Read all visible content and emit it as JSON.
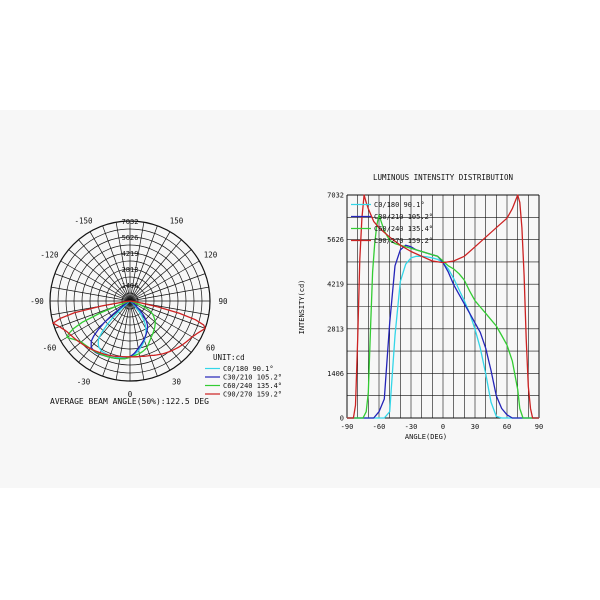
{
  "chart_data": [
    {
      "type": "polar",
      "max_value": 7032,
      "radial_ticks": [
        "7032",
        "5626",
        "4219",
        "2813",
        "1406"
      ],
      "angle_labels": [
        {
          "text": "-150",
          "deg": -150
        },
        {
          "text": "150",
          "deg": 150
        },
        {
          "text": "-120",
          "deg": -120
        },
        {
          "text": "120",
          "deg": 120
        },
        {
          "text": "-90",
          "deg": -90
        },
        {
          "text": "90",
          "deg": 90
        },
        {
          "text": "-60",
          "deg": -60
        },
        {
          "text": "60",
          "deg": 60
        },
        {
          "text": "-30",
          "deg": -30
        },
        {
          "text": "30",
          "deg": 30
        },
        {
          "text": "0",
          "deg": 0
        }
      ],
      "unit_label": "UNIT:cd",
      "footer": "AVERAGE BEAM ANGLE(50%):122.5 DEG",
      "legend": [
        {
          "label": "C0/180",
          "value": "90.1°",
          "color": "#33d6e8"
        },
        {
          "label": "C30/210",
          "value": "105.2°",
          "color": "#2424b8"
        },
        {
          "label": "C60/240",
          "value": "135.4°",
          "color": "#33cc33"
        },
        {
          "label": "C90/270",
          "value": "159.2°",
          "color": "#cc2222"
        }
      ]
    },
    {
      "type": "line",
      "title": "LUMINOUS INTENSITY DISTRIBUTION",
      "xlabel": "ANGLE(DEG)",
      "ylabel": "INTENSITY(cd)",
      "xlim": [
        -90,
        90
      ],
      "ylim": [
        0,
        7032
      ],
      "x_ticks": [
        "-90",
        "-60",
        "-30",
        "0",
        "30",
        "60",
        "90"
      ],
      "y_ticks": [
        "7032",
        "5626",
        "4219",
        "2813",
        "1406",
        "0"
      ],
      "grid": true,
      "legend_position": "top-left",
      "series": [
        {
          "name": "C0/180 90.1°",
          "color": "#33d6e8",
          "x": [
            -90,
            -60,
            -55,
            -50,
            -45,
            -40,
            -35,
            -30,
            -25,
            -20,
            -15,
            -10,
            -5,
            0,
            5,
            10,
            15,
            20,
            25,
            30,
            35,
            40,
            45,
            50,
            55,
            60,
            90
          ],
          "y": [
            0,
            0,
            0,
            200,
            2600,
            4300,
            4850,
            5050,
            5100,
            5100,
            5080,
            5050,
            5000,
            4900,
            4700,
            4400,
            4050,
            3700,
            3300,
            2800,
            2200,
            1400,
            500,
            50,
            0,
            0,
            0
          ]
        },
        {
          "name": "C30/210 105.2°",
          "color": "#2424b8",
          "x": [
            -90,
            -65,
            -60,
            -55,
            -50,
            -45,
            -40,
            -35,
            -30,
            -25,
            -20,
            -15,
            -10,
            -5,
            0,
            5,
            10,
            15,
            20,
            25,
            30,
            35,
            40,
            45,
            50,
            55,
            60,
            65,
            90
          ],
          "y": [
            0,
            0,
            200,
            600,
            3000,
            4800,
            5300,
            5450,
            5400,
            5300,
            5250,
            5200,
            5150,
            5100,
            4900,
            4600,
            4200,
            3900,
            3600,
            3300,
            3000,
            2700,
            2200,
            1500,
            700,
            300,
            100,
            0,
            0
          ]
        },
        {
          "name": "C60/240 135.4°",
          "color": "#33cc33",
          "x": [
            -90,
            -75,
            -72,
            -70,
            -68,
            -66,
            -64,
            -62,
            -60,
            -55,
            -50,
            -45,
            -40,
            -35,
            -30,
            -25,
            -20,
            -15,
            -10,
            -5,
            0,
            5,
            10,
            15,
            20,
            25,
            30,
            35,
            40,
            45,
            50,
            55,
            60,
            65,
            70,
            72,
            75,
            90
          ],
          "y": [
            0,
            0,
            200,
            800,
            2800,
            4600,
            5500,
            6100,
            6400,
            5900,
            5600,
            5500,
            5450,
            5400,
            5350,
            5300,
            5250,
            5200,
            5150,
            5100,
            4950,
            4800,
            4700,
            4550,
            4350,
            4000,
            3700,
            3500,
            3300,
            3100,
            2900,
            2600,
            2300,
            1800,
            900,
            300,
            0,
            0
          ]
        },
        {
          "name": "C90/270 159.2°",
          "color": "#cc2222",
          "x": [
            -90,
            -84,
            -82,
            -80,
            -78,
            -76,
            -74,
            -72,
            -70,
            -65,
            -60,
            -50,
            -40,
            -30,
            -20,
            -10,
            0,
            10,
            20,
            30,
            40,
            50,
            60,
            65,
            70,
            72,
            74,
            76,
            78,
            80,
            82,
            84,
            90
          ],
          "y": [
            0,
            0,
            400,
            2500,
            5000,
            6300,
            7032,
            6800,
            6600,
            6200,
            6000,
            5700,
            5450,
            5250,
            5100,
            4950,
            4900,
            4950,
            5100,
            5400,
            5700,
            6000,
            6300,
            6600,
            7032,
            6800,
            6000,
            4500,
            2500,
            1000,
            300,
            0,
            0
          ]
        }
      ]
    }
  ]
}
